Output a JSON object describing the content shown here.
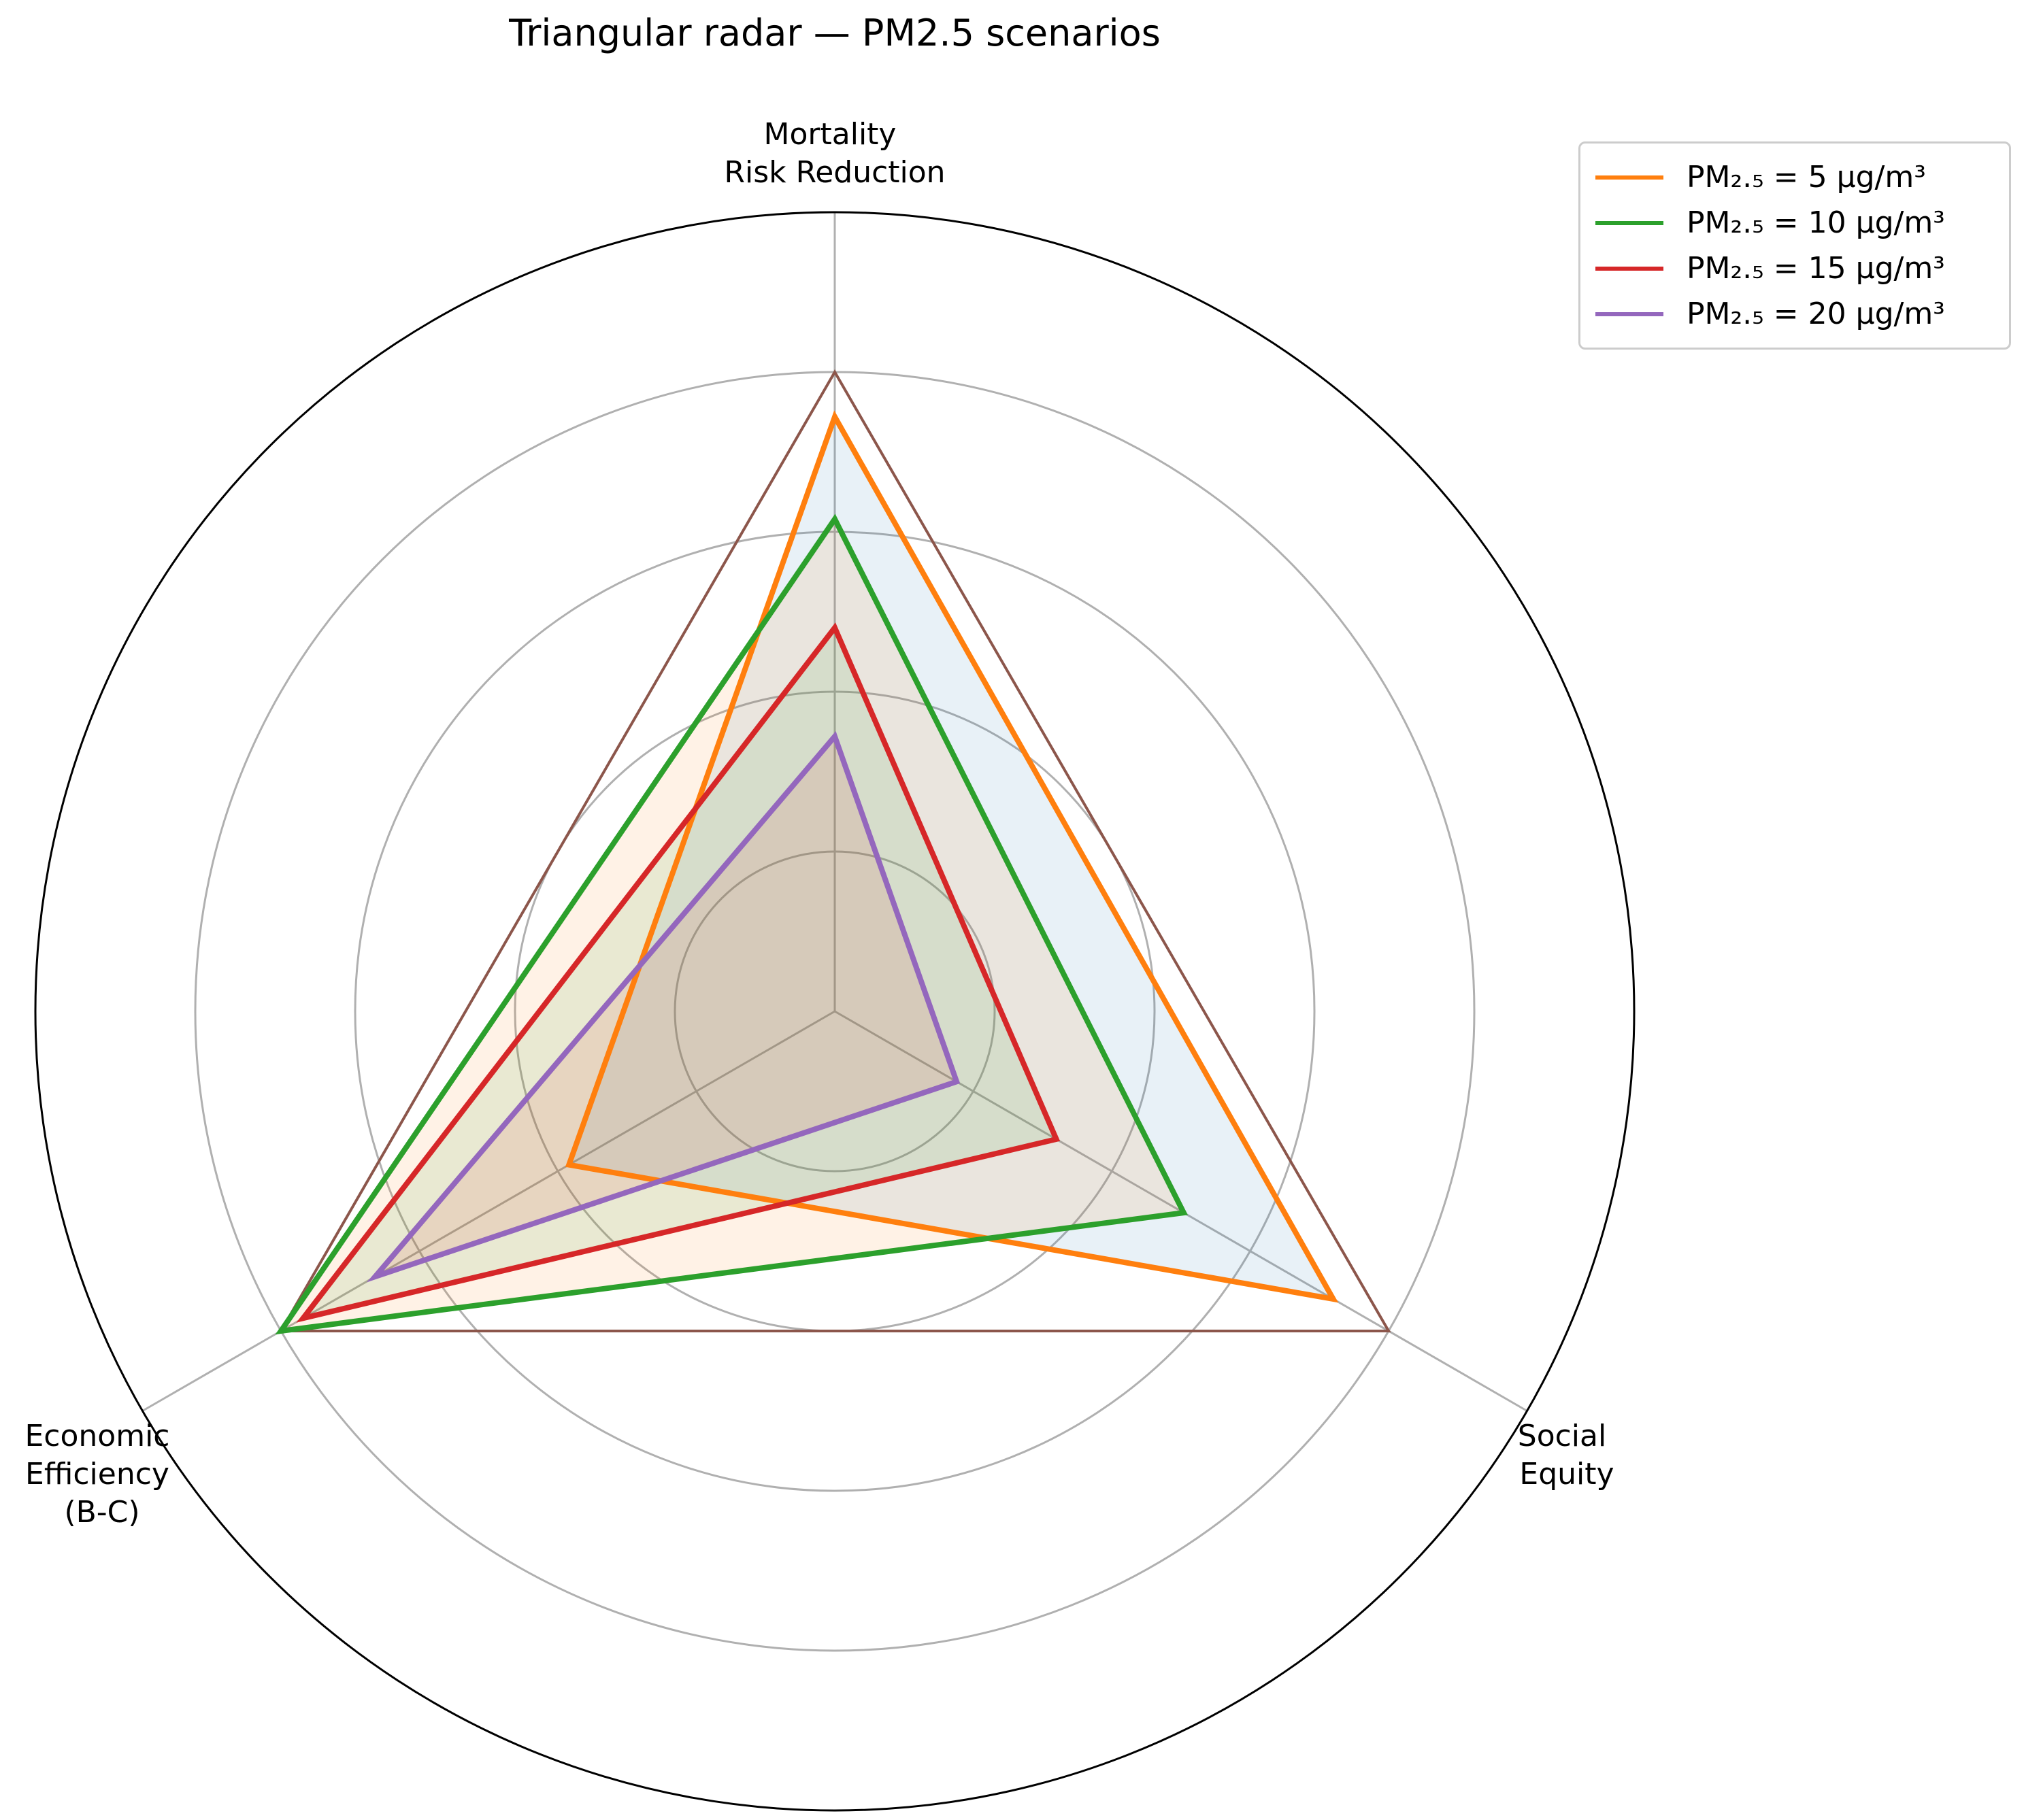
{
  "chart_data": {
    "type": "radar",
    "title": "Triangular radar — PM2.5 scenarios",
    "axes": [
      [
        "Mortality",
        "Risk Reduction"
      ],
      [
        "Social",
        "Equity"
      ],
      [
        "Economic",
        "Efficiency",
        "(B-C)"
      ]
    ],
    "rlim": [
      0,
      1.25
    ],
    "rgrid": [
      0.25,
      0.5,
      0.75,
      1.0
    ],
    "rgrid_ticklabels": false,
    "legend_position": "upper-right-outside",
    "reference": {
      "values": [
        1.0,
        1.0,
        1.0
      ],
      "color": "#8c564b"
    },
    "series": [
      {
        "name": "PM₂.₅ = 5 μg/m³",
        "values": [
          0.93,
          0.9,
          0.48
        ],
        "color": "#ff7f0e",
        "fill": "#1f77b4"
      },
      {
        "name": "PM₂.₅ = 10 μg/m³",
        "values": [
          0.77,
          0.63,
          1.0
        ],
        "color": "#2ca02c",
        "fill": "#ff7f0e"
      },
      {
        "name": "PM₂.₅ = 15 μg/m³",
        "values": [
          0.6,
          0.4,
          0.96
        ],
        "color": "#d62728",
        "fill": "#2ca02c"
      },
      {
        "name": "PM₂.₅ = 20 μg/m³",
        "values": [
          0.43,
          0.22,
          0.83
        ],
        "color": "#9467bd",
        "fill": "#d62728"
      }
    ]
  }
}
